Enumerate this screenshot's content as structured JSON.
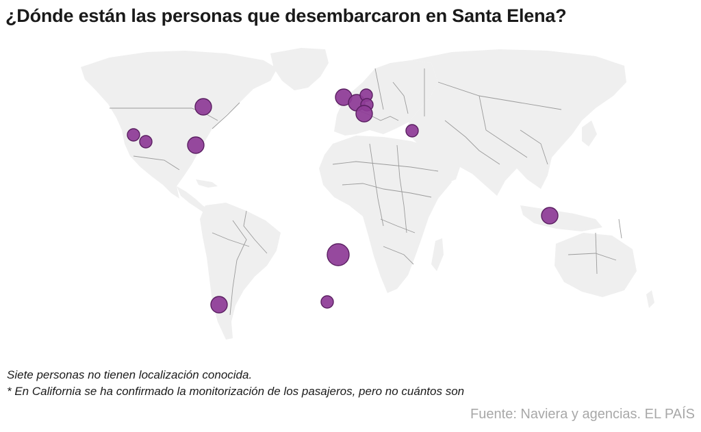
{
  "header": {
    "title": "¿Dónde están las personas que desembarcaron en Santa Elena?"
  },
  "map": {
    "land_color": "#efefef",
    "border_color": "#9a9a9a",
    "bubble_color": "#8e3b97",
    "locations": [
      {
        "id": "canada-east",
        "size": "medium"
      },
      {
        "id": "california-north",
        "size": "small"
      },
      {
        "id": "california-south",
        "size": "small"
      },
      {
        "id": "us-east",
        "size": "medium"
      },
      {
        "id": "uk",
        "size": "medium"
      },
      {
        "id": "netherlands",
        "size": "medium"
      },
      {
        "id": "germany",
        "size": "small"
      },
      {
        "id": "switzerland",
        "size": "small"
      },
      {
        "id": "france",
        "size": "medium"
      },
      {
        "id": "turkey",
        "size": "small"
      },
      {
        "id": "indonesia",
        "size": "medium"
      },
      {
        "id": "santa-elena",
        "size": "large"
      },
      {
        "id": "tristan-da-cunha",
        "size": "small"
      },
      {
        "id": "argentina",
        "size": "medium"
      }
    ]
  },
  "notes": {
    "line1": "Siete personas no tienen localización conocida.",
    "line2": "* En California se ha confirmado la monitorización de los pasajeros, pero no cuántos son"
  },
  "footer": {
    "source": "Fuente: Naviera y agencias. EL PAÍS"
  }
}
